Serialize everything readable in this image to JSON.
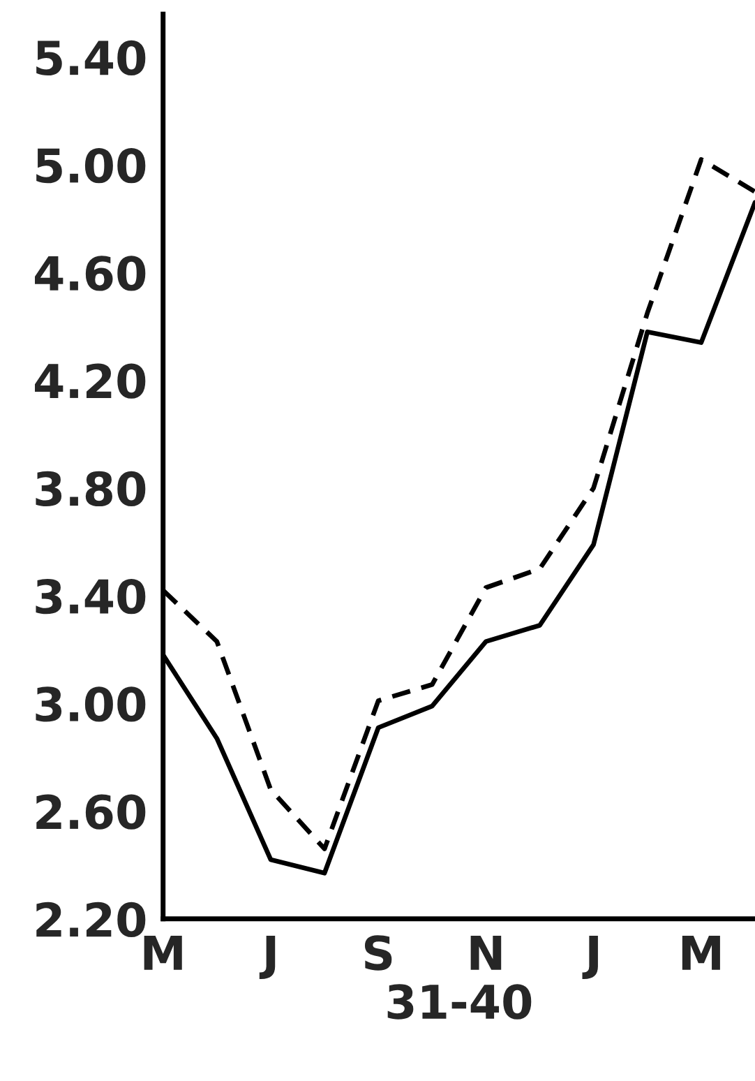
{
  "chart_data": {
    "type": "line",
    "xlabel": "31-40",
    "categories": [
      "M",
      null,
      "J",
      null,
      "S",
      null,
      "N",
      null,
      "J",
      null,
      "M",
      null
    ],
    "ylim": [
      2.2,
      5.56
    ],
    "yticks": [
      {
        "value": 2.2,
        "label": "2.20"
      },
      {
        "value": 2.6,
        "label": "2.60"
      },
      {
        "value": 3.0,
        "label": "3.00"
      },
      {
        "value": 3.4,
        "label": "3.40"
      },
      {
        "value": 3.8,
        "label": "3.80"
      },
      {
        "value": 4.2,
        "label": "4.20"
      },
      {
        "value": 4.6,
        "label": "4.60"
      },
      {
        "value": 5.0,
        "label": "5.00"
      },
      {
        "value": 5.4,
        "label": "5.40"
      }
    ],
    "grid": false,
    "legend": false,
    "marker": "none",
    "series": [
      {
        "color": "#000000",
        "line_style": "solid",
        "values": [
          3.18,
          2.87,
          2.42,
          2.37,
          2.91,
          2.99,
          3.23,
          3.29,
          3.59,
          4.38,
          4.34,
          4.86
        ]
      },
      {
        "color": "#000000",
        "line_style": "dashed",
        "values": [
          3.42,
          3.23,
          2.68,
          2.46,
          3.01,
          3.07,
          3.43,
          3.5,
          3.8,
          4.45,
          5.02,
          4.9
        ]
      }
    ]
  }
}
